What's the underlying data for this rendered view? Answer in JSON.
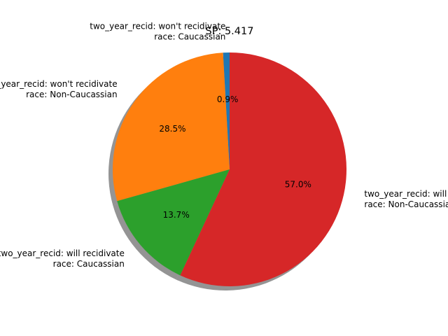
{
  "chart_data": {
    "type": "pie",
    "title": "SP: 5.417",
    "shadow": true,
    "start_angle_deg": 90,
    "direction": "counterclockwise",
    "slices": [
      {
        "label": [
          "two_year_recid: won't recidivate",
          "race: Caucassian"
        ],
        "value": 0.9,
        "pct_label": "0.9%",
        "color": "#1f77b4"
      },
      {
        "label": [
          "two_year_recid: won't recidivate",
          "race: Non-Caucassian"
        ],
        "value": 28.5,
        "pct_label": "28.5%",
        "color": "#ff7f0e"
      },
      {
        "label": [
          "two_year_recid: will recidivate",
          "race: Caucassian"
        ],
        "value": 13.7,
        "pct_label": "13.7%",
        "color": "#2ca02c"
      },
      {
        "label": [
          "two_year_recid: will recidivate",
          "race: Non-Caucassian"
        ],
        "value": 57.0,
        "pct_label": "57.0%",
        "color": "#d62728"
      }
    ]
  }
}
